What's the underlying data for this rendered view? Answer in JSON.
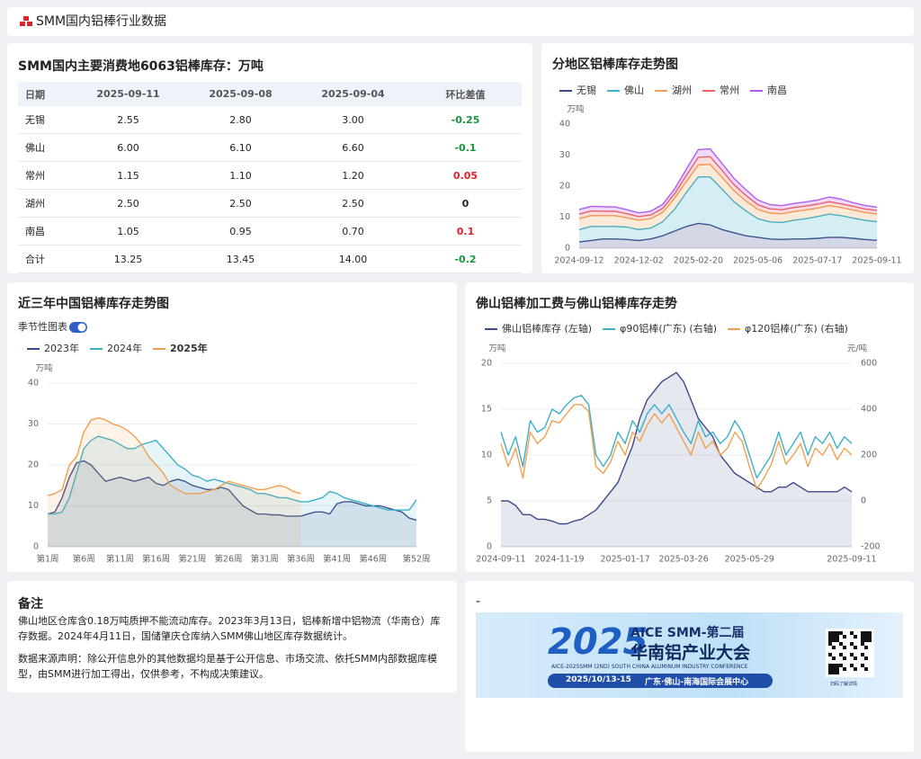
{
  "header": {
    "title": "SMM国内铝棒行业数据"
  },
  "table_card": {
    "title": "SMM国内主要消费地6063铝棒库存：万吨",
    "table": {
      "columns": [
        "日期",
        "2025-09-11",
        "2025-09-08",
        "2025-09-04",
        "环比差值"
      ],
      "rows": [
        [
          "无锡",
          "2.55",
          "2.80",
          "3.00",
          "-0.25"
        ],
        [
          "佛山",
          "6.00",
          "6.10",
          "6.60",
          "-0.1"
        ],
        [
          "常州",
          "1.15",
          "1.10",
          "1.20",
          "0.05"
        ],
        [
          "湖州",
          "2.50",
          "2.50",
          "2.50",
          "0"
        ],
        [
          "南昌",
          "1.05",
          "0.95",
          "0.70",
          "0.1"
        ],
        [
          "合计",
          "13.25",
          "13.45",
          "14.00",
          "-0.2"
        ]
      ]
    }
  },
  "chart_data": [
    {
      "type": "line",
      "title": "分地区铝棒库存走势图",
      "y_unit": "万吨",
      "stacked": true,
      "grid": false,
      "categories": [
        "2024-09-12",
        null,
        null,
        null,
        null,
        "2024-12-02",
        null,
        null,
        null,
        null,
        "2025-02-20",
        null,
        null,
        null,
        null,
        "2025-05-06",
        null,
        null,
        null,
        null,
        "2025-07-17",
        null,
        null,
        null,
        null,
        "2025-09-11"
      ],
      "series": [
        {
          "name": "无锡",
          "color": "#3d4a8a",
          "area": true,
          "values": [
            2,
            2.5,
            3,
            3,
            2.8,
            2.5,
            3,
            4,
            5.5,
            7,
            8,
            7.5,
            6,
            5,
            4,
            3.5,
            3,
            2.8,
            3,
            3,
            3.2,
            3.5,
            3.5,
            3.2,
            2.8,
            2.55
          ]
        },
        {
          "name": "佛山",
          "color": "#3bb0c9",
          "area": true,
          "values": [
            4,
            4.5,
            4,
            4,
            4,
            3.5,
            3.5,
            4.5,
            7,
            11,
            15,
            15.5,
            13,
            10,
            8,
            6,
            5.5,
            5.5,
            6,
            6.5,
            7,
            7.5,
            7,
            6.5,
            6.2,
            6
          ]
        },
        {
          "name": "湖州",
          "color": "#f0a050",
          "area": true,
          "values": [
            3.5,
            3.5,
            3.5,
            3.5,
            3,
            3,
            3,
            3,
            3.5,
            3.5,
            3.8,
            4,
            3.8,
            3.5,
            3.2,
            3,
            2.8,
            2.8,
            2.8,
            2.8,
            2.7,
            2.7,
            2.6,
            2.6,
            2.5,
            2.5
          ]
        },
        {
          "name": "常州",
          "color": "#f06060",
          "area": true,
          "values": [
            1.5,
            1.5,
            1.4,
            1.4,
            1.3,
            1.2,
            1.2,
            1.3,
            1.5,
            2,
            2.5,
            2.5,
            2.3,
            2,
            1.8,
            1.5,
            1.4,
            1.3,
            1.3,
            1.3,
            1.3,
            1.3,
            1.2,
            1.2,
            1.15,
            1.15
          ]
        },
        {
          "name": "南昌",
          "color": "#b05cf0",
          "area": true,
          "values": [
            1.5,
            1.5,
            1.5,
            1.4,
            1.3,
            1.2,
            1.2,
            1.3,
            1.5,
            2,
            2.5,
            2.5,
            2.2,
            2,
            1.8,
            1.5,
            1.4,
            1.3,
            1.3,
            1.3,
            1.3,
            1.5,
            1.5,
            1.2,
            1.1,
            1.05
          ]
        }
      ],
      "ylim": [
        0,
        40
      ],
      "yticks": [
        0,
        10,
        20,
        30,
        40
      ]
    },
    {
      "type": "line",
      "title": "近三年中国铝棒库存走势图",
      "toggle_label": "季节性图表",
      "y_unit": "万吨",
      "stacked": false,
      "grid": true,
      "categories": [
        "第1周",
        null,
        null,
        null,
        null,
        "第6周",
        null,
        null,
        null,
        null,
        "第11周",
        null,
        null,
        null,
        null,
        "第16周",
        null,
        null,
        null,
        null,
        "第21周",
        null,
        null,
        null,
        null,
        "第26周",
        null,
        null,
        null,
        null,
        "第31周",
        null,
        null,
        null,
        null,
        "第36周",
        null,
        null,
        null,
        null,
        "第41周",
        null,
        null,
        null,
        null,
        "第46周",
        null,
        null,
        null,
        null,
        null,
        "第52周"
      ],
      "series": [
        {
          "name": "2023年",
          "color": "#3d4a8a",
          "area": true,
          "values": [
            8,
            8.5,
            12,
            17,
            20.5,
            21,
            20,
            18,
            16,
            16.5,
            17,
            16.5,
            16,
            16.5,
            17,
            15.5,
            15,
            16,
            16.5,
            16,
            15,
            14.5,
            14,
            14,
            14.5,
            14,
            12,
            10,
            9,
            8,
            8,
            7.8,
            7.8,
            7.5,
            7.5,
            7.5,
            8,
            8.5,
            8.5,
            8,
            10.5,
            11,
            11,
            10.5,
            10,
            10,
            10,
            9.5,
            9,
            8.5,
            7,
            6.5
          ]
        },
        {
          "name": "2024年",
          "color": "#3bb0c9",
          "area": true,
          "values": [
            8,
            8,
            8.5,
            12,
            18,
            24,
            26,
            27,
            26.5,
            26,
            25,
            24,
            24,
            25,
            25.5,
            26,
            24,
            22,
            20,
            19,
            17.5,
            17,
            16,
            16.5,
            16,
            15.5,
            15,
            14.5,
            14,
            13,
            13,
            12.5,
            12,
            12,
            11.5,
            11,
            11,
            11.5,
            12,
            13.5,
            13,
            12,
            11.5,
            11,
            10.5,
            10,
            9.5,
            9,
            9,
            9,
            9,
            11.5
          ]
        },
        {
          "name": "2025年",
          "color": "#f0a050",
          "area": true,
          "values": [
            12.5,
            13,
            14,
            20,
            22,
            28,
            31,
            31.5,
            31,
            30,
            29.5,
            28.5,
            27,
            25,
            22,
            20,
            18,
            15,
            14,
            13,
            13,
            13,
            13.5,
            14,
            15,
            16,
            15.5,
            15,
            14.5,
            14,
            14,
            14.5,
            15,
            14.5,
            13.5,
            13,
            null,
            null,
            null,
            null,
            null,
            null,
            null,
            null,
            null,
            null,
            null,
            null,
            null,
            null,
            null,
            null
          ]
        }
      ],
      "ylim": [
        0,
        40
      ],
      "yticks": [
        0,
        10,
        20,
        30,
        40
      ]
    },
    {
      "type": "line",
      "title": "佛山铝棒加工费与佛山铝棒库存走势",
      "y_unit": "万吨",
      "y2_unit": "元/吨",
      "stacked": false,
      "grid": true,
      "categories": [
        "2024-09-11",
        null,
        null,
        null,
        null,
        null,
        null,
        null,
        "2024-11-19",
        null,
        null,
        null,
        null,
        null,
        null,
        null,
        null,
        "2025-01-17",
        null,
        null,
        null,
        null,
        null,
        null,
        null,
        "2025-03-26",
        null,
        null,
        null,
        null,
        null,
        null,
        null,
        null,
        "2025-05-29",
        null,
        null,
        null,
        null,
        null,
        null,
        null,
        null,
        null,
        null,
        null,
        null,
        null,
        "2025-09-11"
      ],
      "series": [
        {
          "name": "佛山铝棒库存 (左轴)",
          "color": "#3d4a8a",
          "area": true,
          "values": [
            5,
            5,
            4.5,
            3.5,
            3.5,
            3,
            3,
            2.8,
            2.5,
            2.5,
            2.8,
            3,
            3.5,
            4,
            5,
            6,
            7,
            9,
            11,
            14,
            16,
            17,
            18,
            18.5,
            19,
            18,
            16,
            14,
            13,
            12,
            10,
            9,
            8,
            7.5,
            7,
            6.5,
            6,
            6,
            6.5,
            6.5,
            7,
            6.5,
            6,
            6,
            6,
            6,
            6,
            6.5,
            6
          ]
        },
        {
          "name": "φ90铝棒(广东) (右轴)",
          "color": "#3bb0c9",
          "axis": "y2",
          "values": [
            300,
            200,
            280,
            150,
            350,
            300,
            320,
            400,
            380,
            420,
            450,
            460,
            420,
            200,
            150,
            200,
            300,
            250,
            350,
            300,
            380,
            420,
            380,
            420,
            360,
            300,
            250,
            350,
            280,
            300,
            250,
            280,
            350,
            300,
            200,
            100,
            150,
            200,
            300,
            200,
            250,
            300,
            200,
            280,
            250,
            300,
            230,
            280,
            250
          ]
        },
        {
          "name": "φ120铝棒(广东) (右轴)",
          "color": "#f0a050",
          "axis": "y2",
          "values": [
            250,
            150,
            230,
            100,
            300,
            250,
            280,
            350,
            340,
            380,
            420,
            420,
            390,
            150,
            120,
            170,
            260,
            200,
            300,
            260,
            330,
            380,
            340,
            380,
            320,
            260,
            200,
            300,
            230,
            260,
            200,
            230,
            300,
            260,
            150,
            50,
            100,
            160,
            260,
            160,
            200,
            250,
            150,
            230,
            200,
            250,
            180,
            230,
            200
          ]
        }
      ],
      "ylim": [
        0,
        20
      ],
      "yticks": [
        0,
        5,
        10,
        15,
        20
      ],
      "y2lim": [
        -200,
        600
      ],
      "y2ticks": [
        -200,
        0,
        200,
        400,
        600
      ]
    }
  ],
  "notes": {
    "title": "备注",
    "paragraphs": [
      "佛山地区仓库含0.18万吨质押不能流动库存。2023年3月13日，铝棒新增中铝物流（华南仓）库存数据。2024年4月11日，国储肇庆仓库纳入SMM佛山地区库存数据统计。",
      "数据来源声明：除公开信息外的其他数据均是基于公开信息、市场交流、依托SMM内部数据库模型，由SMM进行加工得出，仅供参考，不构成决策建议。"
    ]
  },
  "banner": {
    "title": "-",
    "year": "2025",
    "brand": "AICE SMM-第二届",
    "name": "华南铝产业大会",
    "subtitle": "AICE-2025SMM (2ND) SOUTH CHINA ALUMINUM INDUSTRY CONFERENCE",
    "date": "2025/10/13-15",
    "venue": "广东·佛山-南海国际会展中心",
    "qr_caption": "扫码了解详情"
  }
}
